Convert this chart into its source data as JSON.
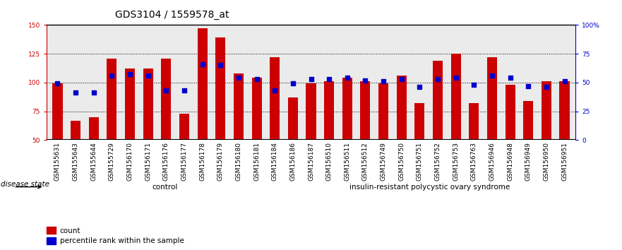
{
  "title": "GDS3104 / 1559578_at",
  "categories": [
    "GSM155631",
    "GSM155643",
    "GSM155644",
    "GSM155729",
    "GSM156170",
    "GSM156171",
    "GSM156176",
    "GSM156177",
    "GSM156178",
    "GSM156179",
    "GSM156180",
    "GSM156181",
    "GSM156184",
    "GSM156186",
    "GSM156187",
    "GSM156510",
    "GSM156511",
    "GSM156512",
    "GSM156749",
    "GSM156750",
    "GSM156751",
    "GSM156752",
    "GSM156753",
    "GSM156763",
    "GSM156946",
    "GSM156948",
    "GSM156949",
    "GSM156950",
    "GSM156951"
  ],
  "bar_values": [
    99,
    67,
    70,
    121,
    112,
    112,
    121,
    73,
    147,
    139,
    108,
    104,
    122,
    87,
    99,
    101,
    104,
    101,
    99,
    106,
    82,
    119,
    125,
    82,
    122,
    98,
    84,
    101,
    101
  ],
  "blue_dot_values": [
    99,
    91,
    91,
    106,
    107,
    106,
    93,
    93,
    116,
    115,
    104,
    103,
    93,
    99,
    103,
    103,
    104,
    102,
    101,
    103,
    96,
    103,
    104,
    98,
    106,
    104,
    97,
    96,
    101
  ],
  "control_count": 13,
  "disease_count": 16,
  "control_label": "control",
  "disease_label": "insulin-resistant polycystic ovary syndrome",
  "disease_state_label": "disease state",
  "ylim_left": [
    50,
    150
  ],
  "ylim_right": [
    0,
    100
  ],
  "yticks_left": [
    50,
    75,
    100,
    125,
    150
  ],
  "yticks_right": [
    0,
    25,
    50,
    75,
    100
  ],
  "ytick_labels_right": [
    "0",
    "25",
    "50",
    "75",
    "100%"
  ],
  "bar_color": "#CC0000",
  "dot_color": "#0000CC",
  "control_bg": "#CCFFCC",
  "disease_bg": "#55DD55",
  "ax_bg": "#EBEBEB",
  "label_bg": "#CCCCCC",
  "legend_count_label": "count",
  "legend_percentile_label": "percentile rank within the sample",
  "bar_width": 0.55,
  "title_fontsize": 10,
  "tick_fontsize": 6.5,
  "label_fontsize": 7.5,
  "xtick_fontsize": 6.5
}
